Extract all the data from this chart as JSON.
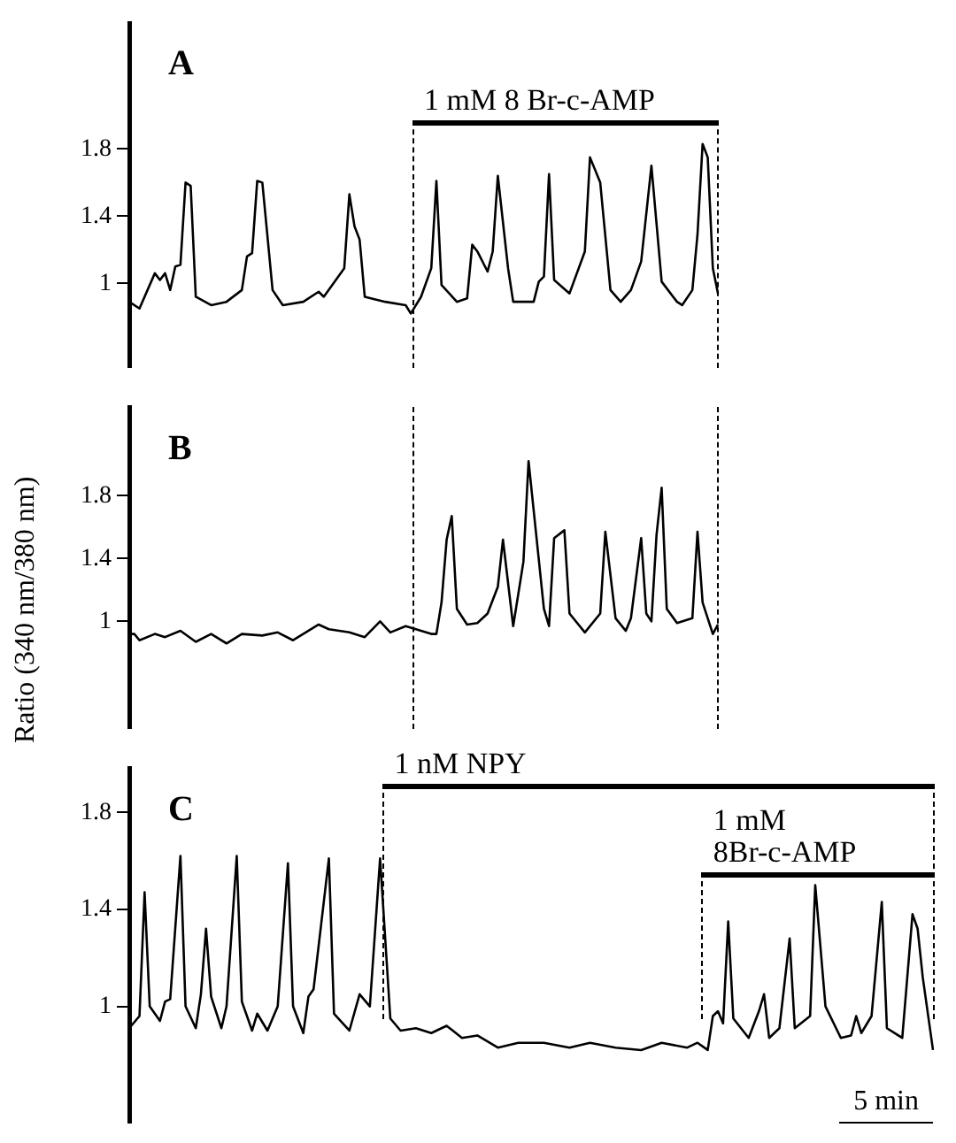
{
  "chart_data": [
    {
      "type": "line",
      "title": "A",
      "color": "#000000",
      "marker": "none",
      "tick_labels": "y",
      "ylim": [
        0.5,
        2.55
      ],
      "yticks": [
        1,
        1.4,
        1.8
      ],
      "categories": [
        null,
        null,
        null,
        null,
        null,
        null,
        null,
        null,
        null,
        null,
        null,
        null,
        null,
        null,
        null,
        null,
        null,
        null,
        null,
        null,
        null,
        null,
        null,
        null,
        null,
        null,
        null,
        null,
        null,
        null,
        null,
        null,
        null,
        null,
        null,
        null,
        null,
        null,
        null,
        null,
        null,
        null,
        null,
        null,
        null,
        null,
        null,
        null,
        null,
        null,
        null,
        null,
        null,
        null,
        null,
        null,
        null,
        null,
        null,
        null,
        null,
        null,
        null,
        null,
        null,
        null,
        null,
        null,
        null,
        null,
        null,
        null,
        null,
        null,
        null,
        null,
        null,
        null,
        null,
        null,
        null,
        null,
        null,
        null,
        null,
        null,
        null,
        null,
        null,
        null,
        null,
        null,
        null,
        null,
        null,
        null,
        null,
        null,
        null,
        null,
        null,
        null,
        null,
        null,
        null,
        null,
        null,
        null,
        null,
        null,
        null,
        null,
        null,
        null,
        null,
        null
      ],
      "values": [
        0.89,
        null,
        0.85,
        null,
        null,
        1.06,
        1.02,
        1.06,
        0.96,
        1.1,
        1.11,
        1.6,
        1.58,
        0.92,
        null,
        null,
        0.87,
        null,
        null,
        0.89,
        null,
        null,
        0.96,
        1.16,
        1.18,
        1.61,
        1.6,
        null,
        0.96,
        null,
        0.87,
        null,
        null,
        null,
        0.89,
        null,
        null,
        0.95,
        0.92,
        null,
        null,
        null,
        1.09,
        1.53,
        1.34,
        1.26,
        0.92,
        null,
        null,
        null,
        0.89,
        null,
        null,
        null,
        0.87,
        0.82,
        null,
        0.92,
        null,
        1.09,
        1.61,
        0.99,
        null,
        null,
        0.89,
        null,
        0.91,
        1.23,
        1.19,
        null,
        1.07,
        1.19,
        1.64,
        null,
        1.09,
        0.89,
        null,
        null,
        null,
        0.89,
        1.01,
        1.04,
        1.65,
        1.02,
        null,
        null,
        0.94,
        null,
        null,
        1.19,
        1.75,
        null,
        1.6,
        null,
        0.96,
        null,
        0.89,
        null,
        0.96,
        null,
        1.13,
        null,
        1.7,
        null,
        1.01,
        null,
        null,
        0.89,
        0.87,
        null,
        0.96,
        1.29,
        1.83,
        1.75,
        1.09,
        0.94
      ],
      "annotations": [
        "1 mM 8 Br-c-AMP"
      ]
    },
    {
      "type": "line",
      "title": "B",
      "ylabel": "Ratio (340 nm/380 nm)",
      "color": "#000000",
      "marker": "none",
      "tick_labels": "y",
      "ylim": [
        0.32,
        2.36
      ],
      "yticks": [
        1,
        1.4,
        1.8
      ],
      "categories": [
        null,
        null,
        null,
        null,
        null,
        null,
        null,
        null,
        null,
        null,
        null,
        null,
        null,
        null,
        null,
        null,
        null,
        null,
        null,
        null,
        null,
        null,
        null,
        null,
        null,
        null,
        null,
        null,
        null,
        null,
        null,
        null,
        null,
        null,
        null,
        null,
        null,
        null,
        null,
        null,
        null,
        null,
        null,
        null,
        null,
        null,
        null,
        null,
        null,
        null,
        null,
        null,
        null,
        null,
        null,
        null,
        null,
        null,
        null,
        null,
        null,
        null,
        null,
        null,
        null,
        null,
        null,
        null,
        null,
        null,
        null,
        null,
        null,
        null,
        null,
        null,
        null,
        null,
        null,
        null,
        null,
        null,
        null,
        null,
        null,
        null,
        null,
        null,
        null,
        null,
        null,
        null,
        null,
        null,
        null,
        null,
        null,
        null,
        null,
        null,
        null,
        null,
        null,
        null,
        null,
        null,
        null,
        null,
        null,
        null,
        null,
        null,
        null,
        null,
        null,
        null
      ],
      "values": [
        0.92,
        0.92,
        0.88,
        null,
        null,
        0.92,
        null,
        0.9,
        null,
        null,
        0.94,
        null,
        null,
        0.87,
        null,
        null,
        0.92,
        null,
        null,
        0.86,
        null,
        null,
        0.92,
        null,
        null,
        null,
        0.91,
        null,
        null,
        0.93,
        null,
        null,
        0.88,
        null,
        null,
        null,
        null,
        0.98,
        null,
        0.95,
        null,
        null,
        null,
        0.93,
        null,
        null,
        0.9,
        null,
        null,
        1.0,
        null,
        0.93,
        null,
        null,
        0.97,
        null,
        null,
        null,
        null,
        0.92,
        0.92,
        1.12,
        1.52,
        1.67,
        1.08,
        null,
        0.98,
        null,
        0.99,
        null,
        1.05,
        null,
        1.22,
        1.52,
        null,
        0.97,
        null,
        1.38,
        2.02,
        null,
        null,
        1.08,
        0.97,
        1.53,
        null,
        1.58,
        1.05,
        null,
        null,
        0.93,
        null,
        null,
        1.05,
        1.57,
        null,
        1.02,
        null,
        0.94,
        1.02,
        null,
        1.53,
        1.05,
        1.0,
        1.55,
        1.85,
        1.08,
        null,
        0.99,
        null,
        null,
        1.02,
        1.57,
        1.12,
        null,
        0.92,
        0.98
      ]
    },
    {
      "type": "line",
      "title": "C",
      "color": "#000000",
      "marker": "none",
      "tick_labels": "y",
      "ylim": [
        0.52,
        1.98
      ],
      "yticks": [
        1,
        1.4,
        1.8
      ],
      "categories": [
        null,
        null,
        null,
        null,
        null,
        null,
        null,
        null,
        null,
        null,
        null,
        null,
        null,
        null,
        null,
        null,
        null,
        null,
        null,
        null,
        null,
        null,
        null,
        null,
        null,
        null,
        null,
        null,
        null,
        null,
        null,
        null,
        null,
        null,
        null,
        null,
        null,
        null,
        null,
        null,
        null,
        null,
        null,
        null,
        null,
        null,
        null,
        null,
        null,
        null,
        null,
        null,
        null,
        null,
        null,
        null,
        null,
        null,
        null,
        null,
        null,
        null,
        null,
        null,
        null,
        null,
        null,
        null,
        null,
        null,
        null,
        null,
        null,
        null,
        null,
        null,
        null,
        null,
        null,
        null,
        null,
        null,
        null,
        null,
        null,
        null,
        null,
        null,
        null,
        null,
        null,
        null,
        null,
        null,
        null,
        null,
        null,
        null,
        null,
        null,
        null,
        null,
        null,
        null,
        null,
        null,
        null,
        null,
        null,
        null,
        null,
        null,
        null,
        null,
        null,
        null,
        null,
        null,
        null,
        null,
        null,
        null,
        null,
        null,
        null,
        null,
        null,
        null,
        null,
        null,
        null,
        null,
        null,
        null,
        null,
        null,
        null,
        null,
        null,
        null,
        null,
        null,
        null,
        null,
        null,
        null,
        null,
        null,
        null,
        null,
        null,
        null,
        null,
        null,
        null,
        null,
        null,
        null
      ],
      "values": [
        0.91,
        null,
        0.96,
        1.47,
        1.0,
        null,
        0.94,
        1.02,
        1.03,
        null,
        1.62,
        1.0,
        null,
        0.91,
        1.05,
        1.32,
        1.04,
        null,
        0.91,
        1.0,
        null,
        1.62,
        1.02,
        null,
        0.9,
        0.97,
        null,
        0.9,
        null,
        1.0,
        null,
        1.59,
        1.0,
        null,
        0.89,
        1.04,
        1.07,
        null,
        null,
        1.61,
        0.97,
        null,
        null,
        0.9,
        null,
        1.05,
        null,
        1.0,
        null,
        1.61,
        null,
        0.95,
        null,
        0.9,
        null,
        null,
        0.91,
        null,
        null,
        0.89,
        null,
        null,
        0.92,
        null,
        null,
        0.87,
        null,
        null,
        0.88,
        null,
        null,
        null,
        0.83,
        null,
        null,
        null,
        0.85,
        null,
        null,
        null,
        null,
        0.85,
        null,
        null,
        null,
        null,
        0.83,
        null,
        null,
        null,
        0.85,
        null,
        null,
        null,
        null,
        0.83,
        null,
        null,
        null,
        null,
        0.82,
        null,
        null,
        null,
        0.85,
        null,
        null,
        null,
        null,
        0.83,
        null,
        0.85,
        null,
        0.82,
        0.96,
        0.98,
        0.93,
        1.35,
        0.95,
        null,
        null,
        0.87,
        null,
        0.98,
        1.05,
        0.87,
        null,
        0.91,
        null,
        1.28,
        0.91,
        null,
        null,
        0.96,
        1.5,
        null,
        1.0,
        null,
        null,
        0.87,
        null,
        0.88,
        0.96,
        0.89,
        null,
        0.96,
        null,
        1.43,
        0.91,
        null,
        null,
        0.87,
        null,
        1.38,
        1.32,
        1.12,
        null,
        0.82
      ],
      "annotations": [
        "1 nM NPY",
        "1 mM\n8Br-c-AMP",
        "5 min"
      ]
    }
  ]
}
